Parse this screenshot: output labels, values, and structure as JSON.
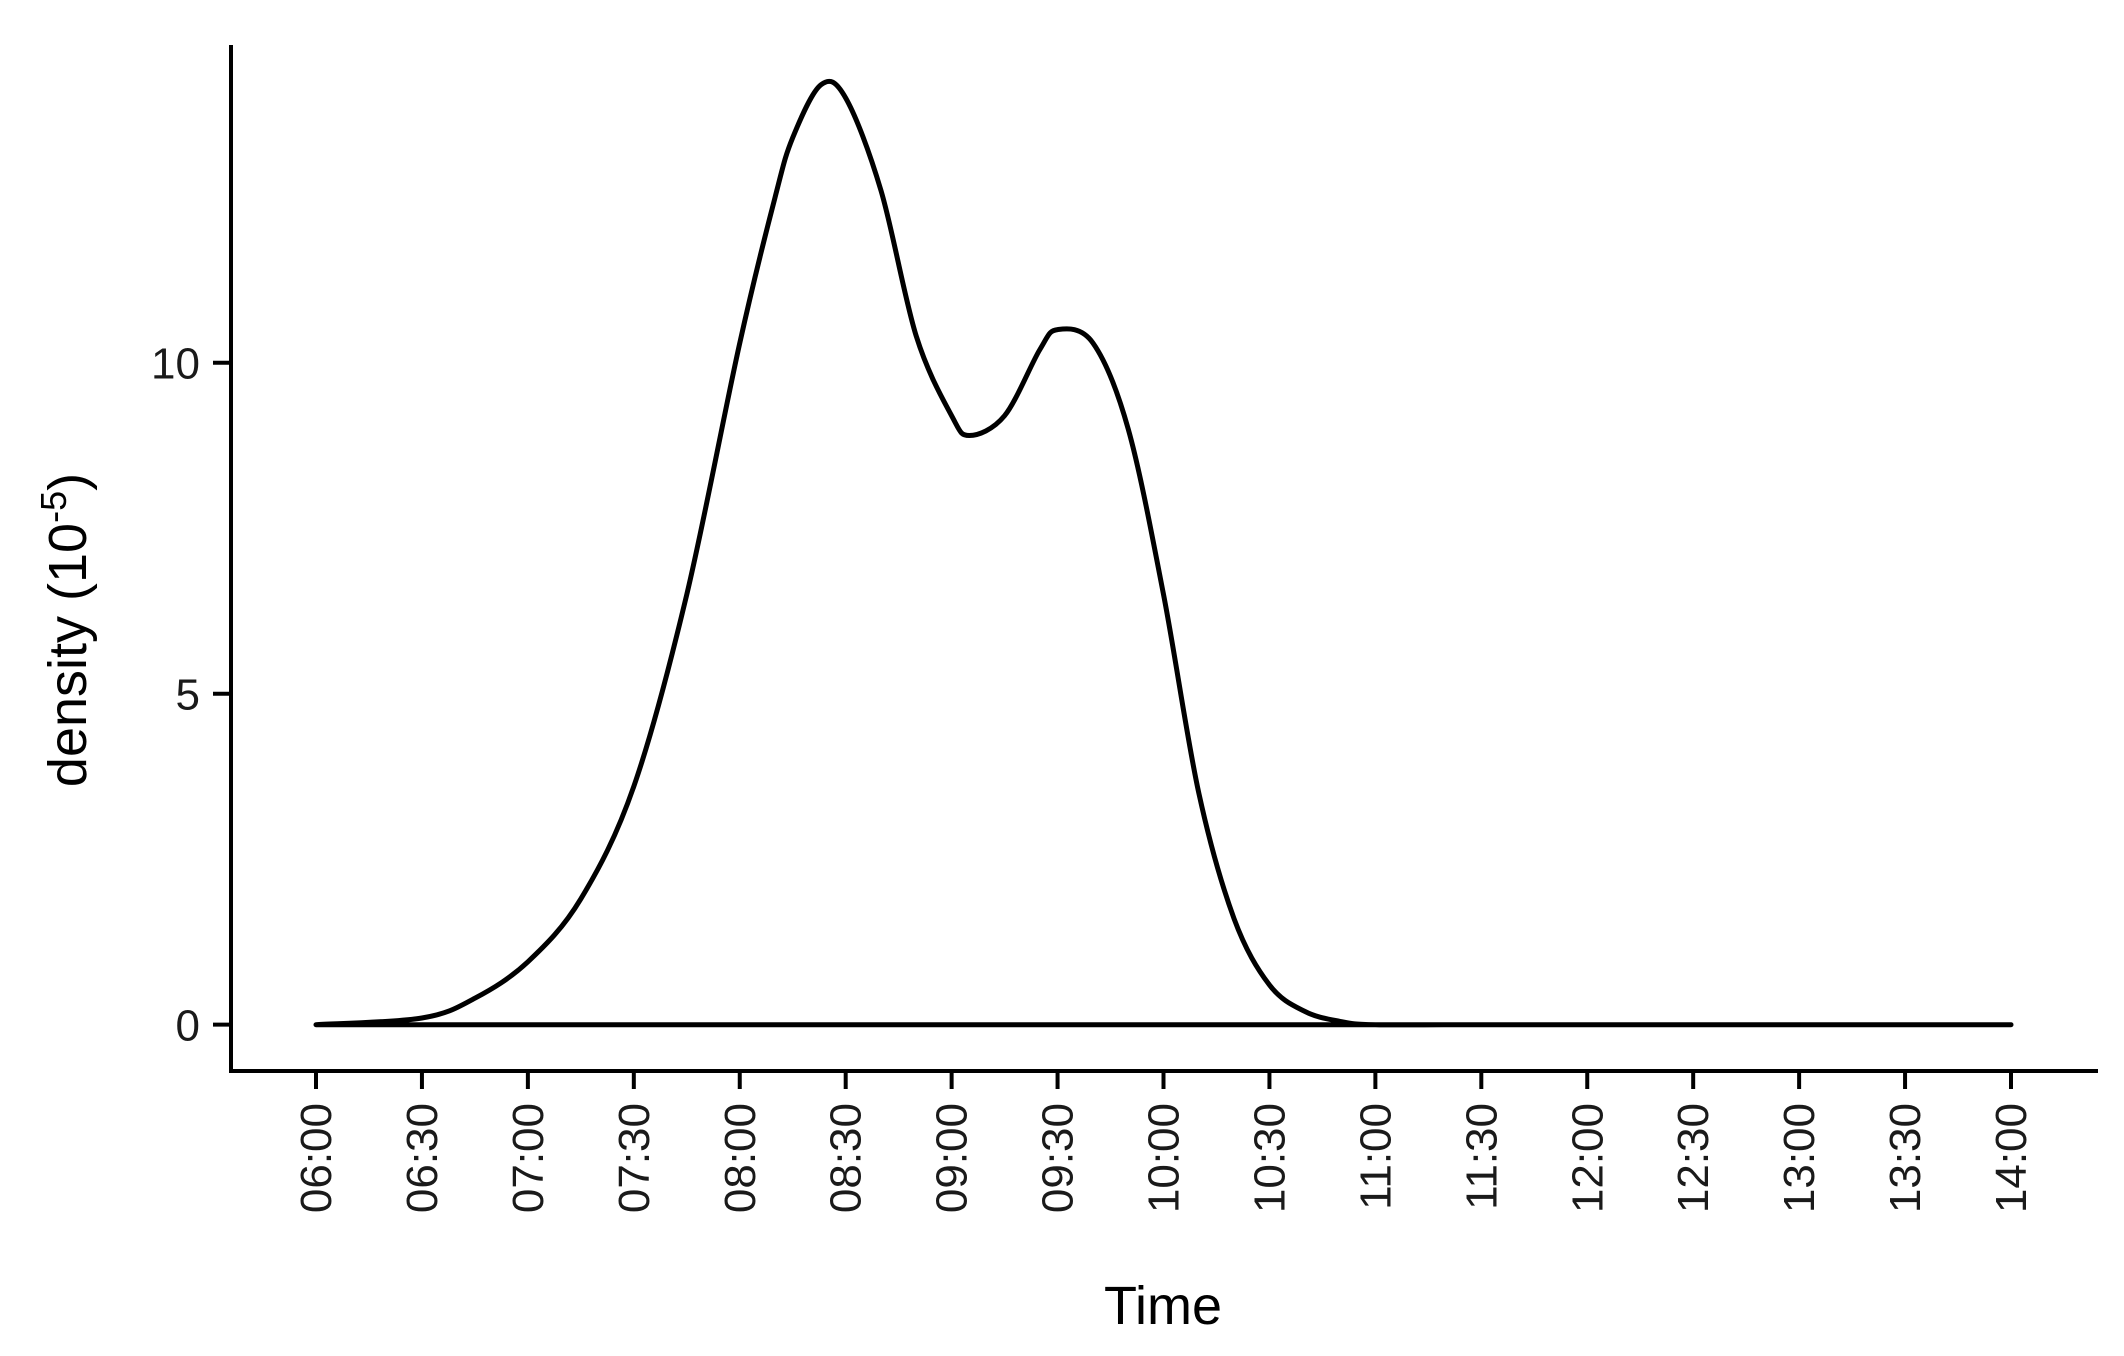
{
  "chart_data": {
    "type": "line",
    "xlabel": "Time",
    "ylabel": "density (10",
    "ylabel_exponent": "-5",
    "ylabel_suffix": ")",
    "x_ticks": [
      "06:00",
      "06:30",
      "07:00",
      "07:30",
      "08:00",
      "08:30",
      "09:00",
      "09:30",
      "10:00",
      "10:30",
      "11:00",
      "11:30",
      "12:00",
      "12:30",
      "13:00",
      "13:30",
      "14:00"
    ],
    "y_ticks": [
      0,
      5,
      10
    ],
    "xlim": [
      "06:00",
      "14:00"
    ],
    "ylim": [
      -0.7,
      14.8
    ],
    "grid": false,
    "legend": "none",
    "series": [
      {
        "x": [
          "06:00",
          "06:30",
          "06:45",
          "07:00",
          "07:15",
          "07:30",
          "07:45",
          "08:00",
          "08:10",
          "08:15",
          "08:23",
          "08:30",
          "08:40",
          "08:50",
          "09:00",
          "09:05",
          "09:15",
          "09:25",
          "09:30",
          "09:40",
          "09:50",
          "10:00",
          "10:10",
          "10:20",
          "10:30",
          "10:40",
          "10:50",
          "11:00",
          "11:30",
          "12:00",
          "13:00",
          "14:00"
        ],
        "y": [
          0.0,
          0.1,
          0.4,
          0.95,
          1.9,
          3.6,
          6.5,
          10.3,
          12.5,
          13.4,
          14.2,
          14.0,
          12.6,
          10.4,
          9.2,
          8.9,
          9.2,
          10.2,
          10.5,
          10.3,
          9.0,
          6.5,
          3.5,
          1.6,
          0.6,
          0.2,
          0.05,
          0.0,
          0.0,
          0.0,
          0.0,
          0.0
        ]
      }
    ]
  }
}
